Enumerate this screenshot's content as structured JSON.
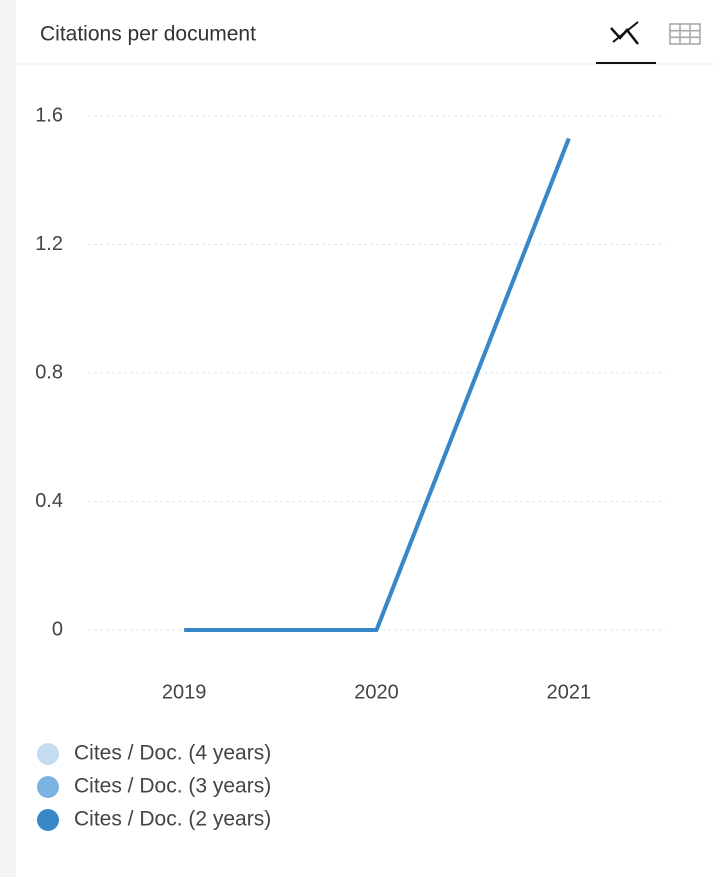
{
  "chart_data": {
    "type": "line",
    "title": "Citations per document",
    "categories": [
      "2019",
      "2020",
      "2021"
    ],
    "series": [
      {
        "name": "Cites / Doc. (4 years)",
        "color": "#c4dcf2",
        "values": [
          0,
          0,
          1.53
        ]
      },
      {
        "name": "Cites / Doc. (3 years)",
        "color": "#7db3e0",
        "values": [
          0,
          0,
          1.53
        ]
      },
      {
        "name": "Cites / Doc. (2 years)",
        "color": "#3a87c8",
        "values": [
          0,
          0,
          1.53
        ]
      }
    ],
    "ylim": [
      0,
      1.6
    ],
    "yticks": [
      0,
      0.4,
      0.8,
      1.2,
      1.6
    ],
    "grid": true
  }
}
